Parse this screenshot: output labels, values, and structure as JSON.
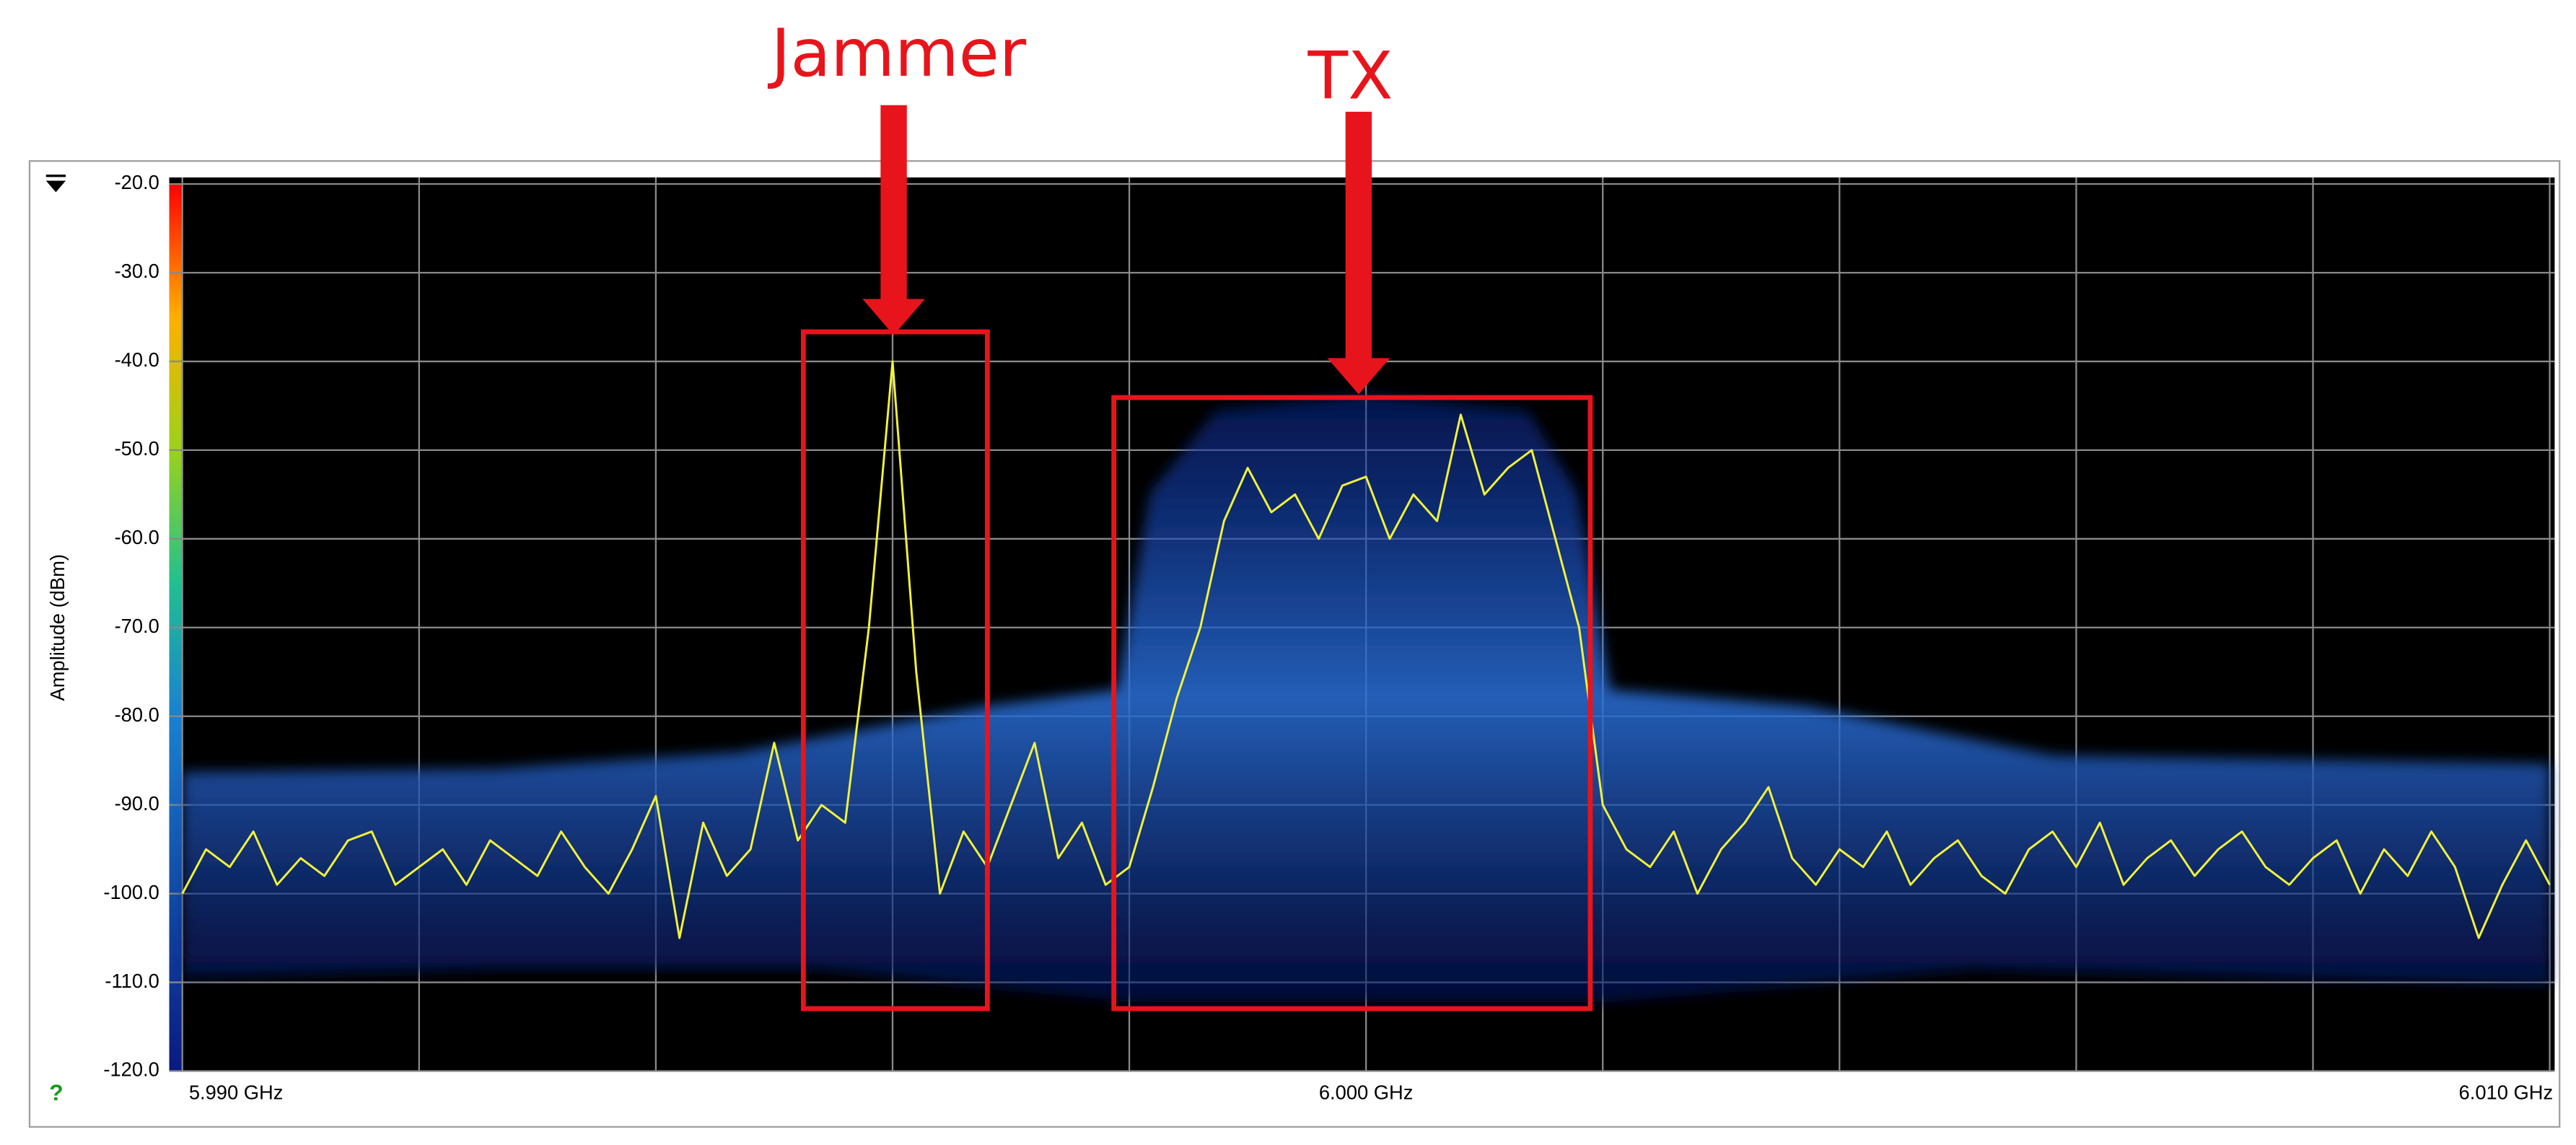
{
  "chart_data": {
    "type": "line",
    "y_label": "Amplitude (dBm)",
    "annotations": [
      "Jammer",
      "TX"
    ],
    "xlim": [
      5.99,
      6.01
    ],
    "xticks": [
      {
        "value": 5.99,
        "label": "5.990 GHz"
      },
      {
        "value": 6.0,
        "label": "6.000 GHz"
      },
      {
        "value": 6.01,
        "label": "6.010 GHz"
      }
    ],
    "ylim": [
      -120,
      -20
    ],
    "yticks": [
      {
        "value": -20,
        "label": "-20.0"
      },
      {
        "value": -30,
        "label": "-30.0"
      },
      {
        "value": -40,
        "label": "-40.0"
      },
      {
        "value": -50,
        "label": "-50.0"
      },
      {
        "value": -60,
        "label": "-60.0"
      },
      {
        "value": -70,
        "label": "-70.0"
      },
      {
        "value": -80,
        "label": "-80.0"
      },
      {
        "value": -90,
        "label": "-90.0"
      },
      {
        "value": -100,
        "label": "-100.0"
      },
      {
        "value": -110,
        "label": "-110.0"
      },
      {
        "value": -120,
        "label": "-120.0"
      }
    ],
    "grid": true,
    "color": "#f2f23a",
    "x": [
      5.99,
      5.9902,
      5.9904,
      5.9906,
      5.9908,
      5.991,
      5.9912,
      5.9914,
      5.9916,
      5.9918,
      5.992,
      5.9922,
      5.9924,
      5.9926,
      5.9928,
      5.993,
      5.9932,
      5.9934,
      5.9936,
      5.9938,
      5.994,
      5.9942,
      5.9944,
      5.9946,
      5.9948,
      5.995,
      5.9952,
      5.9954,
      5.9956,
      5.9958,
      5.996,
      5.9962,
      5.9964,
      5.9966,
      5.9968,
      5.997,
      5.9972,
      5.9974,
      5.9976,
      5.9978,
      5.998,
      5.9982,
      5.9984,
      5.9986,
      5.9988,
      5.999,
      5.9992,
      5.9994,
      5.9996,
      5.9998,
      6.0,
      6.0002,
      6.0004,
      6.0006,
      6.0008,
      6.001,
      6.0012,
      6.0014,
      6.0016,
      6.0018,
      6.002,
      6.0022,
      6.0024,
      6.0026,
      6.0028,
      6.003,
      6.0032,
      6.0034,
      6.0036,
      6.0038,
      6.004,
      6.0042,
      6.0044,
      6.0046,
      6.0048,
      6.005,
      6.0052,
      6.0054,
      6.0056,
      6.0058,
      6.006,
      6.0062,
      6.0064,
      6.0066,
      6.0068,
      6.007,
      6.0072,
      6.0074,
      6.0076,
      6.0078,
      6.008,
      6.0082,
      6.0084,
      6.0086,
      6.0088,
      6.009,
      6.0092,
      6.0094,
      6.0096,
      6.0098,
      6.01
    ],
    "values": [
      -100,
      -95,
      -97,
      -93,
      -99,
      -96,
      -98,
      -94,
      -93,
      -99,
      -97,
      -95,
      -99,
      -94,
      -96,
      -98,
      -93,
      -97,
      -100,
      -95,
      -89,
      -105,
      -92,
      -98,
      -95,
      -83,
      -94,
      -90,
      -92,
      -70,
      -40,
      -75,
      -100,
      -93,
      -97,
      -90,
      -83,
      -96,
      -92,
      -99,
      -97,
      -88,
      -78,
      -70,
      -58,
      -52,
      -57,
      -55,
      -60,
      -54,
      -53,
      -60,
      -55,
      -58,
      -46,
      -55,
      -52,
      -50,
      -60,
      -70,
      -90,
      -95,
      -97,
      -93,
      -100,
      -95,
      -92,
      -88,
      -96,
      -99,
      -95,
      -97,
      -93,
      -99,
      -96,
      -94,
      -98,
      -100,
      -95,
      -93,
      -97,
      -92,
      -99,
      -96,
      -94,
      -98,
      -95,
      -93,
      -97,
      -99,
      -96,
      -94,
      -100,
      -95,
      -98,
      -93,
      -97,
      -105,
      -99,
      -94,
      -99
    ]
  },
  "ui": {
    "help_icon": "?"
  }
}
